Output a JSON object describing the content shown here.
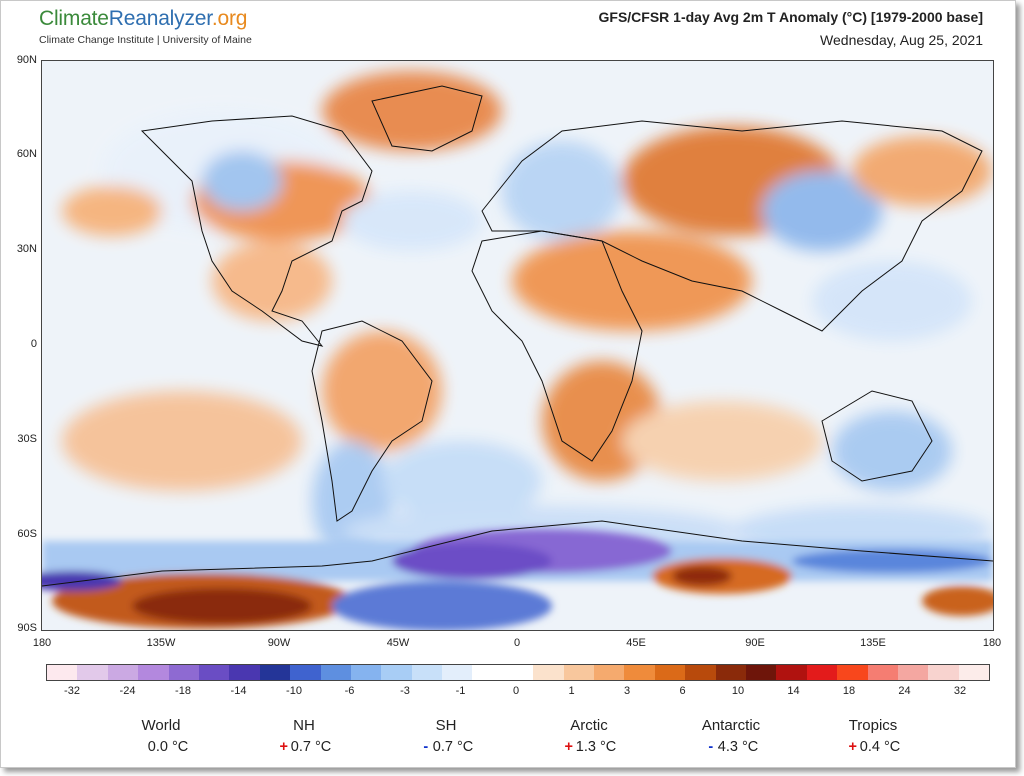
{
  "header": {
    "logo_part1": "Climate",
    "logo_part2": "Reanalyzer",
    "logo_part3": ".org",
    "affiliation": "Climate Change Institute | University of Maine",
    "title": "GFS/CFSR 1-day Avg 2m T Anomaly (°C) [1979-2000 base]",
    "date": "Wednesday, Aug 25, 2021"
  },
  "map": {
    "lat_labels": [
      "90N",
      "60N",
      "30N",
      "0",
      "30S",
      "60S",
      "90S"
    ],
    "lon_labels": [
      "180",
      "135W",
      "90W",
      "45W",
      "0",
      "45E",
      "90E",
      "135E",
      "180"
    ]
  },
  "colorbar": {
    "tick_labels": [
      "-32",
      "-24",
      "-18",
      "-14",
      "-10",
      "-6",
      "-3",
      "-1",
      "0",
      "1",
      "3",
      "6",
      "10",
      "14",
      "18",
      "24",
      "32"
    ],
    "colors": [
      "#fde9ee",
      "#e2c9ea",
      "#cba9e3",
      "#b388de",
      "#8e6ad2",
      "#6a4dc4",
      "#4a37b0",
      "#243598",
      "#3f63cf",
      "#5e8fe0",
      "#85b3ef",
      "#a8cdf5",
      "#c8e0f9",
      "#e3eefb",
      "#ffffff",
      "#ffffff",
      "#fbe2cc",
      "#f8c79d",
      "#f5aa6e",
      "#ef8b3b",
      "#db6a18",
      "#b84a0c",
      "#8a2a0a",
      "#6e150a",
      "#b0120f",
      "#e31b1b",
      "#f8471c",
      "#f57d72",
      "#f4a7a1",
      "#f8d3cf",
      "#fcecea"
    ]
  },
  "stats": [
    {
      "name": "World",
      "sign": "",
      "value": "0.0 °C"
    },
    {
      "name": "NH",
      "sign": "+",
      "value": "0.7 °C"
    },
    {
      "name": "SH",
      "sign": "-",
      "value": "0.7 °C"
    },
    {
      "name": "Arctic",
      "sign": "+",
      "value": "1.3 °C"
    },
    {
      "name": "Antarctic",
      "sign": "-",
      "value": "4.3 °C"
    },
    {
      "name": "Tropics",
      "sign": "+",
      "value": "0.4 °C"
    }
  ]
}
